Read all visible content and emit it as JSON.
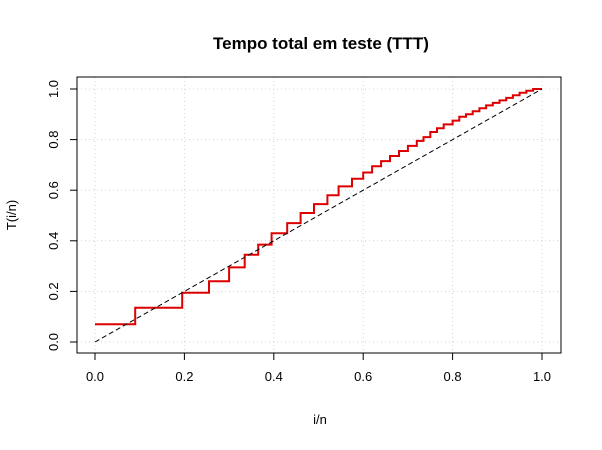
{
  "chart_data": {
    "type": "line",
    "title": "Tempo total em teste (TTT)",
    "xlabel": "i/n",
    "ylabel": "T(i/n)",
    "xlim": [
      0,
      1
    ],
    "ylim": [
      0,
      1
    ],
    "x_ticks": [
      "0.0",
      "0.2",
      "0.4",
      "0.6",
      "0.8",
      "1.0"
    ],
    "y_ticks": [
      "0.0",
      "0.2",
      "0.4",
      "0.6",
      "0.8",
      "1.0"
    ],
    "grid": true,
    "colors": {
      "ttt": "#dd0000",
      "diagonal": "#000000",
      "grid": "#d3d3d3"
    },
    "series": [
      {
        "style": "step",
        "points": [
          [
            0.0,
            0.07
          ],
          [
            0.09,
            0.07
          ],
          [
            0.09,
            0.135
          ],
          [
            0.195,
            0.135
          ],
          [
            0.195,
            0.195
          ],
          [
            0.255,
            0.195
          ],
          [
            0.255,
            0.24
          ],
          [
            0.3,
            0.24
          ],
          [
            0.3,
            0.295
          ],
          [
            0.335,
            0.295
          ],
          [
            0.335,
            0.345
          ],
          [
            0.365,
            0.345
          ],
          [
            0.365,
            0.385
          ],
          [
            0.395,
            0.385
          ],
          [
            0.395,
            0.43
          ],
          [
            0.43,
            0.43
          ],
          [
            0.43,
            0.47
          ],
          [
            0.46,
            0.47
          ],
          [
            0.46,
            0.51
          ],
          [
            0.49,
            0.51
          ],
          [
            0.49,
            0.545
          ],
          [
            0.52,
            0.545
          ],
          [
            0.52,
            0.58
          ],
          [
            0.545,
            0.58
          ],
          [
            0.545,
            0.615
          ],
          [
            0.575,
            0.615
          ],
          [
            0.575,
            0.645
          ],
          [
            0.6,
            0.645
          ],
          [
            0.6,
            0.67
          ],
          [
            0.62,
            0.67
          ],
          [
            0.62,
            0.695
          ],
          [
            0.64,
            0.695
          ],
          [
            0.64,
            0.715
          ],
          [
            0.66,
            0.715
          ],
          [
            0.66,
            0.735
          ],
          [
            0.68,
            0.735
          ],
          [
            0.68,
            0.755
          ],
          [
            0.7,
            0.755
          ],
          [
            0.7,
            0.775
          ],
          [
            0.72,
            0.775
          ],
          [
            0.72,
            0.795
          ],
          [
            0.735,
            0.795
          ],
          [
            0.735,
            0.81
          ],
          [
            0.75,
            0.81
          ],
          [
            0.75,
            0.83
          ],
          [
            0.765,
            0.83
          ],
          [
            0.765,
            0.845
          ],
          [
            0.78,
            0.845
          ],
          [
            0.78,
            0.86
          ],
          [
            0.8,
            0.86
          ],
          [
            0.8,
            0.875
          ],
          [
            0.815,
            0.875
          ],
          [
            0.815,
            0.89
          ],
          [
            0.83,
            0.89
          ],
          [
            0.83,
            0.9
          ],
          [
            0.845,
            0.9
          ],
          [
            0.845,
            0.912
          ],
          [
            0.86,
            0.912
          ],
          [
            0.86,
            0.924
          ],
          [
            0.875,
            0.924
          ],
          [
            0.875,
            0.935
          ],
          [
            0.89,
            0.935
          ],
          [
            0.89,
            0.945
          ],
          [
            0.905,
            0.945
          ],
          [
            0.905,
            0.955
          ],
          [
            0.92,
            0.955
          ],
          [
            0.92,
            0.965
          ],
          [
            0.935,
            0.965
          ],
          [
            0.935,
            0.975
          ],
          [
            0.95,
            0.975
          ],
          [
            0.95,
            0.985
          ],
          [
            0.965,
            0.985
          ],
          [
            0.965,
            0.993
          ],
          [
            0.98,
            0.993
          ],
          [
            0.98,
            1.0
          ],
          [
            1.0,
            1.0
          ]
        ]
      },
      {
        "style": "dashed",
        "points": [
          [
            0,
            0
          ],
          [
            1,
            1
          ]
        ]
      }
    ]
  }
}
